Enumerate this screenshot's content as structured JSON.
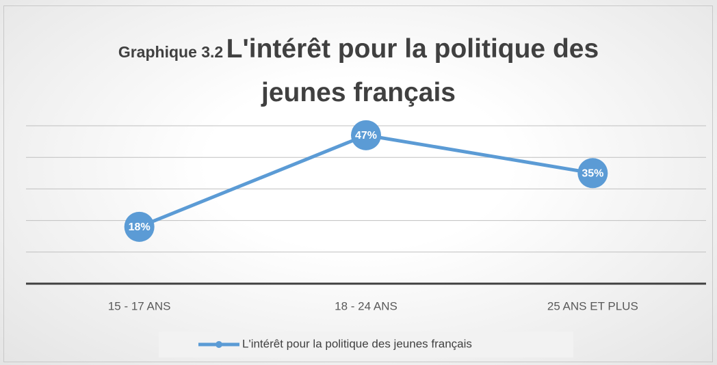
{
  "chart_data": {
    "type": "line",
    "title_number": "Graphique 3.2",
    "title": "L'intérêt pour la politique des jeunes français",
    "categories": [
      "15 - 17 ANS",
      "18 - 24 ANS",
      "25 ANS ET PLUS"
    ],
    "series": [
      {
        "name": "L'intérêt pour la politique des jeunes français",
        "color": "#5b9bd5",
        "values": [
          18,
          47,
          35
        ],
        "value_labels": [
          "18%",
          "47%",
          "35%"
        ]
      }
    ],
    "ylim": [
      0,
      50
    ],
    "yticks": [
      0,
      10,
      20,
      30,
      40,
      50
    ],
    "grid": true,
    "legend": "bottom"
  }
}
